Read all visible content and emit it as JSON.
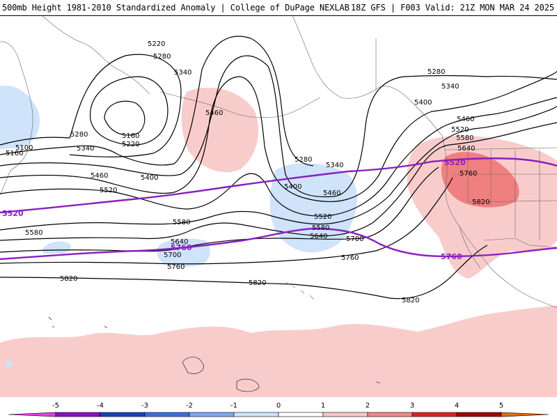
{
  "header": {
    "title": "500mb Height 1981-2010 Standardized Anomaly | College of DuPage NEXLAB",
    "valid": "18Z GFS | F003 Valid: 21Z MON MAR 24 2025"
  },
  "contour_labels": {
    "c5220a": "5220",
    "c5280a": "5280",
    "c5340a": "5340",
    "c5460a": "5460",
    "c5160a": "5160",
    "c5220b": "5220",
    "c5280b": "5280",
    "c5340b": "5340",
    "c5100": "5100",
    "c5160b": "5160",
    "c5400a": "5400",
    "c5460b": "5460",
    "c5520a": "5520",
    "c5580a": "5580",
    "c5580b": "5580",
    "c5640a": "5640",
    "c5700a": "5700",
    "c5760a": "5760",
    "c5820a": "5820",
    "c5820b": "5820",
    "c5280c": "5280",
    "c5340c": "5340",
    "c5400b": "5400",
    "c5460c": "5460",
    "c5520b": "5520",
    "c5580c": "5580",
    "c5640b": "5640",
    "c5700b": "5700",
    "c5760b": "5760",
    "c5820c": "5820",
    "c5280d": "5280",
    "c5340d": "5340",
    "c5400c": "5400",
    "c5460d": "5460",
    "c5520c": "5520",
    "c5580d": "5580",
    "c5640c": "5640",
    "c5760c": "5760",
    "c5820d": "5820"
  },
  "purple_labels": {
    "p5520a": "5520",
    "p5520b": "5520",
    "p5760a": "5760",
    "p5760b": "5760"
  },
  "legend": {
    "ticks": [
      "-5",
      "-4",
      "-3",
      "-2",
      "-1",
      "0",
      "1",
      "2",
      "3",
      "4",
      "5"
    ],
    "colors": [
      "#e040e0",
      "#8a10c8",
      "#1a3fbf",
      "#3d6ee8",
      "#7fa9f2",
      "#cfe3fa",
      "#ffffff",
      "#f7c8c8",
      "#f08a8a",
      "#e02020",
      "#a00000",
      "#e86a00",
      "#ffc000"
    ]
  },
  "colors": {
    "negative_anomaly_fill": "#cfe3fa",
    "positive_anomaly_fill": "#f9cccc",
    "strong_positive_fill": "#f08080",
    "highlight_contour": "#8a1fbf"
  }
}
